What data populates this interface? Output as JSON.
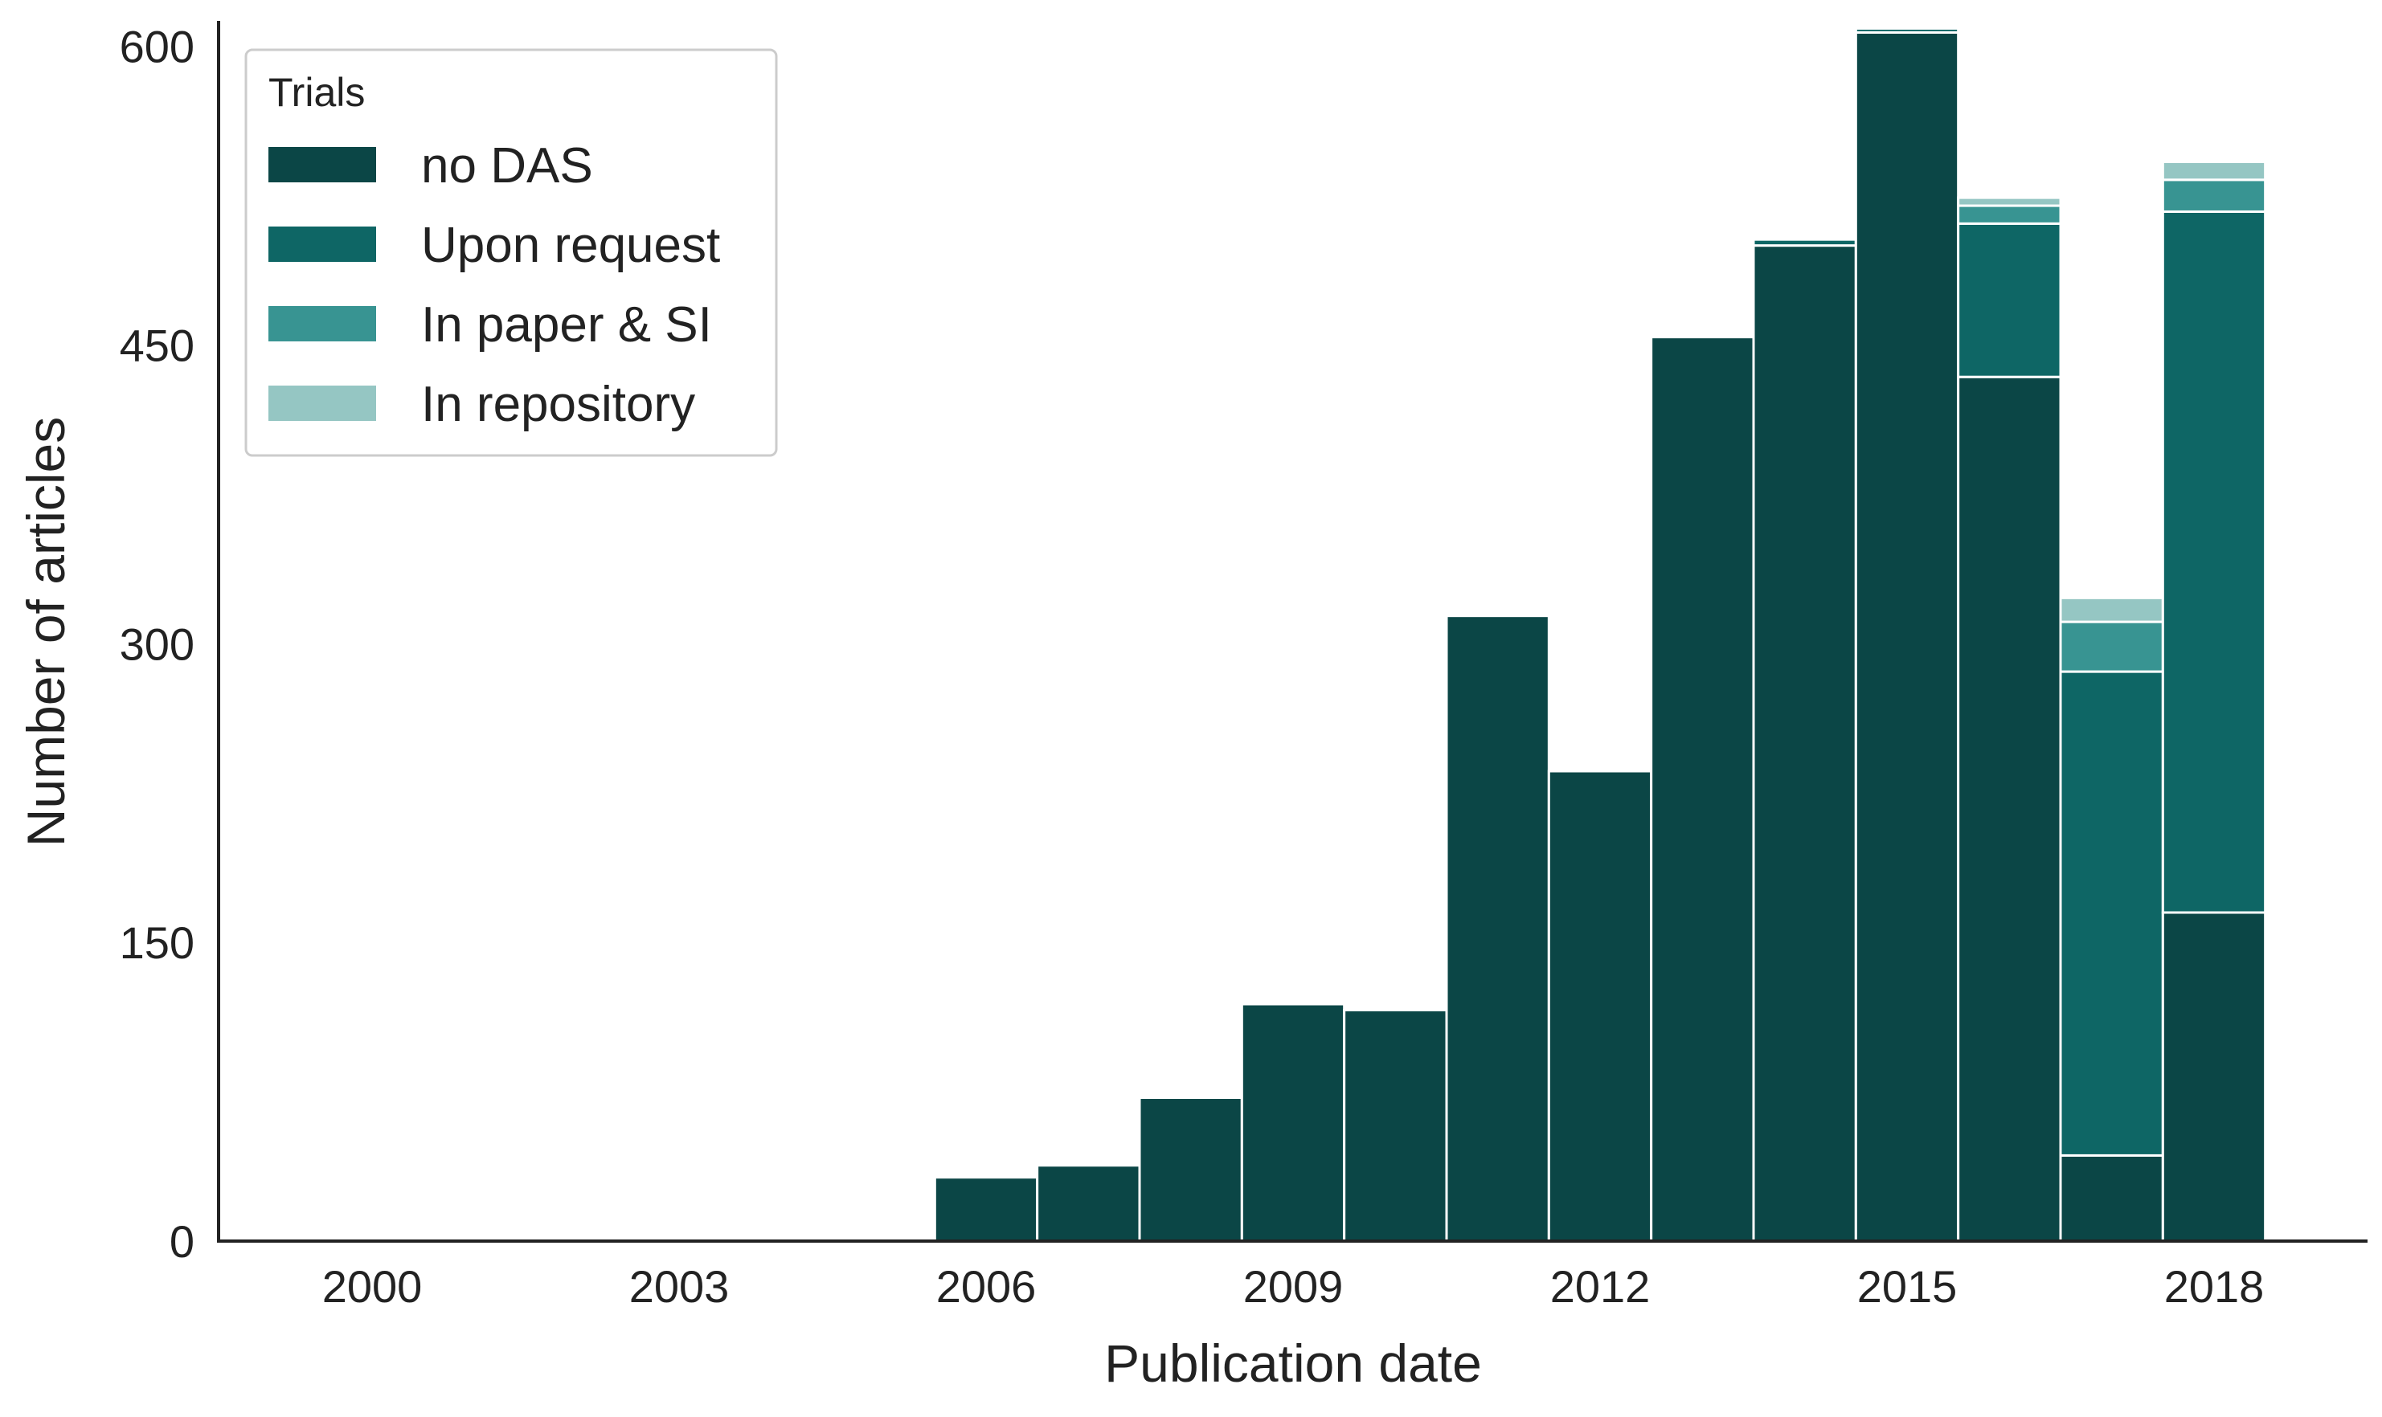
{
  "chart_data": {
    "type": "bar",
    "stacked": true,
    "xlabel": "Publication date",
    "ylabel": "Number of articles",
    "x_ticks": [
      "2000",
      "2003",
      "2006",
      "2009",
      "2012",
      "2015",
      "2018"
    ],
    "y_ticks": [
      0,
      150,
      300,
      450,
      600
    ],
    "xlim": [
      1998.5,
      2019.5
    ],
    "ylim": [
      0,
      612
    ],
    "grid": false,
    "legend": {
      "title": "Trials",
      "placement": "top-left"
    },
    "bins": [
      {
        "year": 2006,
        "values": [
          32,
          0,
          0,
          0
        ]
      },
      {
        "year": 2007,
        "values": [
          38,
          0,
          0,
          0
        ]
      },
      {
        "year": 2008,
        "values": [
          72,
          0,
          0,
          0
        ]
      },
      {
        "year": 2009,
        "values": [
          119,
          0,
          0,
          0
        ]
      },
      {
        "year": 2010,
        "values": [
          116,
          0,
          0,
          0
        ]
      },
      {
        "year": 2011,
        "values": [
          314,
          0,
          0,
          0
        ]
      },
      {
        "year": 2012,
        "values": [
          236,
          0,
          0,
          0
        ]
      },
      {
        "year": 2013,
        "values": [
          454,
          0,
          0,
          0
        ]
      },
      {
        "year": 2014,
        "values": [
          500,
          3,
          0,
          0
        ]
      },
      {
        "year": 2015,
        "values": [
          607,
          2,
          0,
          0
        ]
      },
      {
        "year": 2016,
        "values": [
          434,
          77,
          9,
          4
        ]
      },
      {
        "year": 2017,
        "values": [
          43,
          243,
          25,
          12
        ]
      },
      {
        "year": 2018,
        "values": [
          165,
          352,
          16,
          9
        ]
      }
    ],
    "series": [
      {
        "name": "no DAS",
        "color": "#0b4646"
      },
      {
        "name": "Upon request",
        "color": "#0e6665"
      },
      {
        "name": "In paper & SI",
        "color": "#389492"
      },
      {
        "name": "In repository",
        "color": "#95c6c3"
      }
    ]
  }
}
